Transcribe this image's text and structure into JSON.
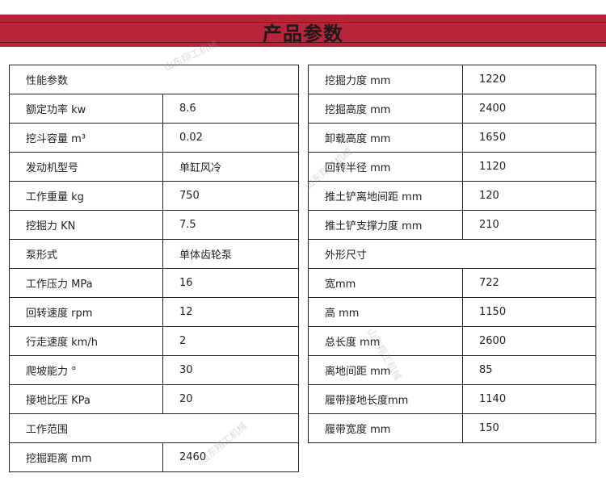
{
  "title": "产品参数",
  "watermark": "山东翔工机械",
  "colors": {
    "banner": "#b8243a",
    "banner_line": "#5a0f18"
  },
  "left_table": [
    {
      "section": "性能参数"
    },
    {
      "label": "额定功率  kw",
      "value": "8.6"
    },
    {
      "label": "挖斗容量  m³",
      "value": "0.02"
    },
    {
      "label": "发动机型号",
      "value": "单缸风冷"
    },
    {
      "label": "工作重量  kg",
      "value": "750"
    },
    {
      "label": "挖掘力 KN",
      "value": "7.5"
    },
    {
      "label": "泵形式",
      "value": "单体齿轮泵"
    },
    {
      "label": "工作压力  MPa",
      "value": "16"
    },
    {
      "label": "回转速度 rpm",
      "value": "12"
    },
    {
      "label": "行走速度  km/h",
      "value": "2"
    },
    {
      "label": "爬坡能力 °",
      "value": "30"
    },
    {
      "label": "接地比压  KPa",
      "value": "20"
    },
    {
      "section": "工作范围"
    },
    {
      "label": "挖掘距离  mm",
      "value": "2460"
    }
  ],
  "right_table": [
    {
      "label": "挖掘力度 mm",
      "value": "1220"
    },
    {
      "label": "挖掘高度 mm",
      "value": "2400"
    },
    {
      "label": "卸载高度  mm",
      "value": "1650"
    },
    {
      "label": "回转半径  mm",
      "value": "1120"
    },
    {
      "label": "推土铲离地间距 mm",
      "value": "120"
    },
    {
      "label": "推土铲支撑力度 mm",
      "value": "210"
    },
    {
      "section": "外形尺寸"
    },
    {
      "label": "宽mm",
      "value": "722"
    },
    {
      "label": "高 mm",
      "value": "1150"
    },
    {
      "label": "总长度 mm",
      "value": "2600"
    },
    {
      "label": "离地间距 mm",
      "value": "85"
    },
    {
      "label": "履带接地长度mm",
      "value": "1140"
    },
    {
      "label": "履带宽度 mm",
      "value": "150"
    }
  ]
}
